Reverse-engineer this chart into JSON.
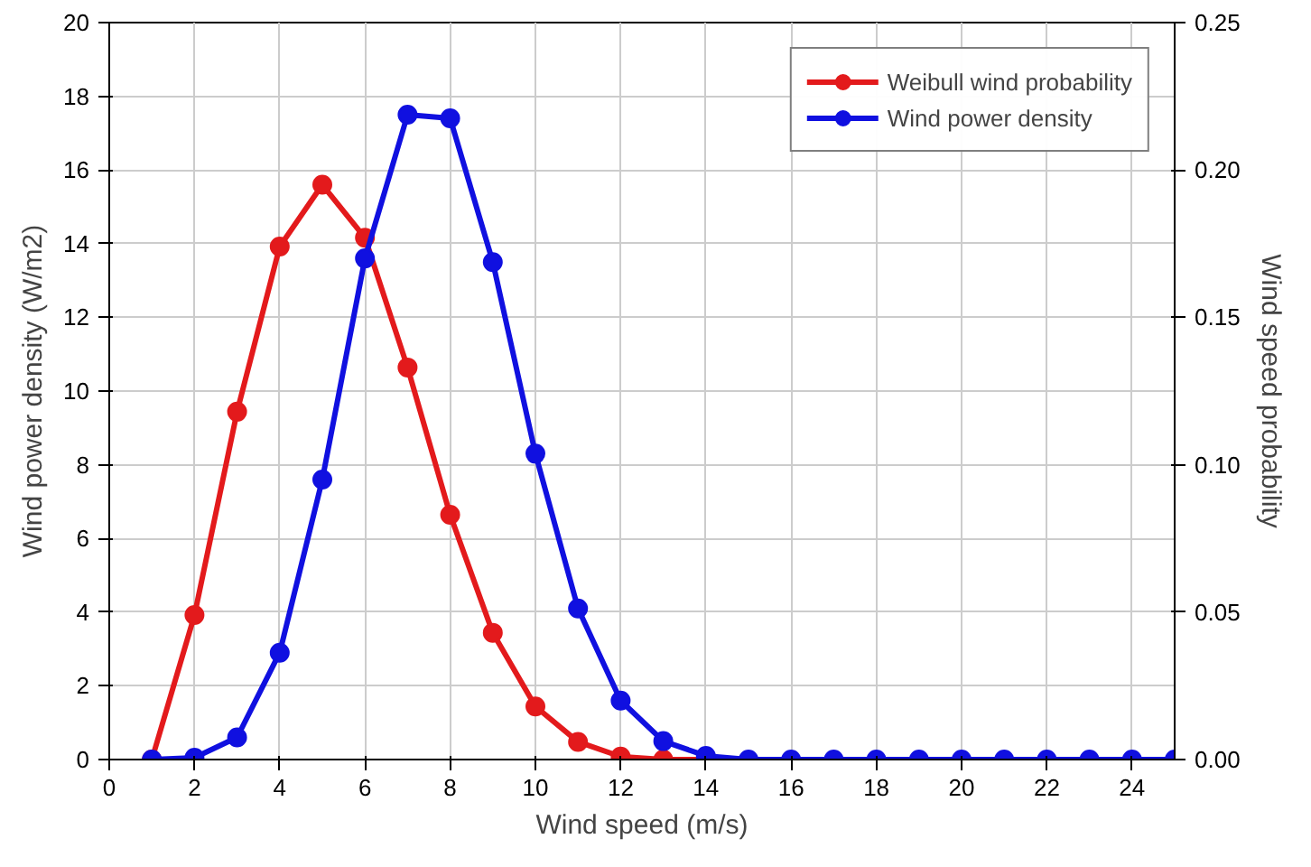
{
  "chart_data": {
    "type": "line",
    "xlabel": "Wind speed (m/s)",
    "ylabel": "Wind power density (W/m2)",
    "y2label": "Wind speed probability",
    "xlim": [
      0,
      25
    ],
    "xticks": [
      0,
      2,
      4,
      6,
      8,
      10,
      12,
      14,
      16,
      18,
      20,
      22,
      24
    ],
    "ylim": [
      0,
      20
    ],
    "yticks": [
      0,
      2,
      4,
      6,
      8,
      10,
      12,
      14,
      16,
      18,
      20
    ],
    "y2lim": [
      0,
      0.25
    ],
    "y2ticks": [
      {
        "value": 0,
        "label": "0.00"
      },
      {
        "value": 0.05,
        "label": "0.05"
      },
      {
        "value": 0.1,
        "label": "0.10"
      },
      {
        "value": 0.15,
        "label": "0.15"
      },
      {
        "value": 0.2,
        "label": "0.20"
      },
      {
        "value": 0.25,
        "label": "0.25"
      }
    ],
    "grid": true,
    "legend": "top right",
    "marker": "circle",
    "line_style": "solid",
    "series": [
      {
        "name": "Weibull wind probability",
        "color": "#e31a1c",
        "axis": "y2",
        "x": [
          1,
          2,
          3,
          4,
          5,
          6,
          7,
          8,
          9,
          10,
          11,
          12,
          13,
          14
        ],
        "values": [
          0,
          0.049,
          0.118,
          0.174,
          0.195,
          0.177,
          0.133,
          0.083,
          0.043,
          0.018,
          0.006,
          0.001,
          0,
          0
        ]
      },
      {
        "name": "Wind power density",
        "color": "#1010e0",
        "x": [
          1,
          2,
          3,
          4,
          5,
          6,
          7,
          8,
          9,
          10,
          11,
          12,
          13,
          14,
          15,
          16,
          17,
          18,
          19,
          20,
          21,
          22,
          23,
          24,
          25
        ],
        "values": [
          0,
          0.05,
          0.6,
          2.9,
          7.6,
          13.6,
          17.5,
          17.4,
          13.5,
          8.3,
          4.1,
          1.6,
          0.5,
          0.1,
          0,
          0,
          0,
          0,
          0,
          0,
          0,
          0,
          0,
          0,
          0
        ]
      }
    ]
  }
}
